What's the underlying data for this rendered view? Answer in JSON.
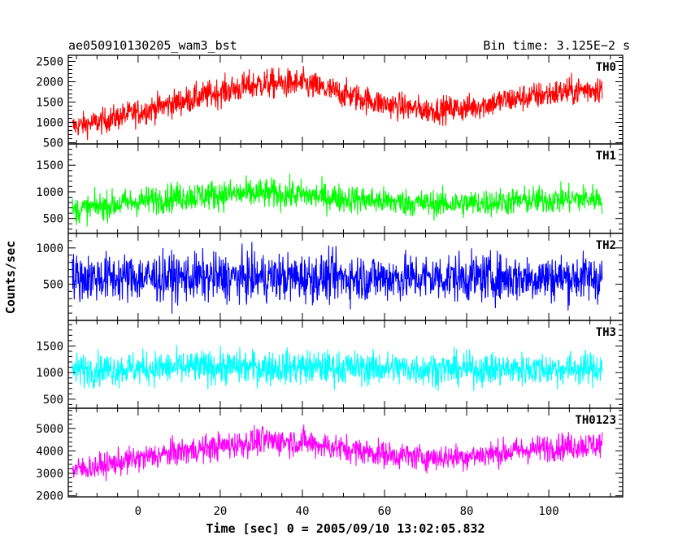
{
  "header": {
    "title": "ae050910130205_wam3_bst",
    "bin_time": "Bin time: 3.125E−2 s"
  },
  "chart_data": {
    "type": "line",
    "title": "ae050910130205_wam3_bst",
    "xlabel": "Time [sec] 0 = 2005/09/10 13:02:05.832",
    "ylabel": "Counts/sec",
    "xlim": [
      -17,
      118
    ],
    "x_ticks": [
      0,
      20,
      40,
      60,
      80,
      100
    ],
    "x_data_range": [
      -16,
      113
    ],
    "grid": false,
    "panels": [
      {
        "name": "TH0",
        "color": "#ff0000",
        "ylim": [
          470,
          2650
        ],
        "y_ticks": [
          500,
          1000,
          1500,
          2000,
          2500
        ],
        "series": {
          "x": [
            -16,
            -10,
            0,
            10,
            20,
            30,
            40,
            50,
            60,
            70,
            80,
            90,
            100,
            113
          ],
          "mean": [
            900,
            1000,
            1250,
            1500,
            1750,
            1950,
            1950,
            1700,
            1450,
            1300,
            1350,
            1550,
            1700,
            1850
          ],
          "spread": [
            380,
            400,
            430,
            440,
            460,
            480,
            470,
            450,
            430,
            420,
            430,
            440,
            450,
            470
          ]
        }
      },
      {
        "name": "TH1",
        "color": "#00ff00",
        "ylim": [
          220,
          1900
        ],
        "y_ticks": [
          500,
          1000,
          1500
        ],
        "series": {
          "x": [
            -16,
            -10,
            0,
            10,
            20,
            30,
            40,
            50,
            60,
            70,
            80,
            90,
            100,
            113
          ],
          "mean": [
            640,
            720,
            820,
            910,
            950,
            970,
            940,
            880,
            820,
            780,
            780,
            820,
            850,
            880
          ],
          "spread": [
            330,
            340,
            350,
            360,
            370,
            370,
            360,
            350,
            340,
            335,
            335,
            340,
            345,
            350
          ]
        }
      },
      {
        "name": "TH2",
        "color": "#0000ff",
        "ylim": [
          0,
          1200
        ],
        "y_ticks": [
          500,
          1000
        ],
        "series": {
          "x": [
            -16,
            0,
            20,
            40,
            60,
            80,
            100,
            113
          ],
          "mean": [
            590,
            590,
            590,
            590,
            590,
            590,
            590,
            590
          ],
          "spread": [
            430,
            430,
            430,
            430,
            430,
            430,
            430,
            430
          ]
        }
      },
      {
        "name": "TH3",
        "color": "#00ffff",
        "ylim": [
          330,
          1980
        ],
        "y_ticks": [
          500,
          1000,
          1500
        ],
        "series": {
          "x": [
            -16,
            0,
            20,
            40,
            60,
            80,
            100,
            113
          ],
          "mean": [
            1050,
            1080,
            1100,
            1100,
            1080,
            1060,
            1070,
            1080
          ],
          "spread": [
            400,
            410,
            420,
            420,
            410,
            400,
            405,
            410
          ]
        }
      },
      {
        "name": "TH0123",
        "color": "#ff00ff",
        "ylim": [
          1950,
          5900
        ],
        "y_ticks": [
          2000,
          3000,
          4000,
          5000
        ],
        "series": {
          "x": [
            -16,
            -10,
            0,
            10,
            20,
            30,
            40,
            50,
            60,
            70,
            80,
            90,
            100,
            113
          ],
          "mean": [
            3150,
            3300,
            3650,
            3950,
            4200,
            4450,
            4400,
            4100,
            3850,
            3700,
            3750,
            3950,
            4150,
            4300
          ],
          "spread": [
            700,
            720,
            760,
            780,
            800,
            820,
            810,
            790,
            760,
            740,
            750,
            770,
            790,
            810
          ]
        }
      }
    ]
  }
}
